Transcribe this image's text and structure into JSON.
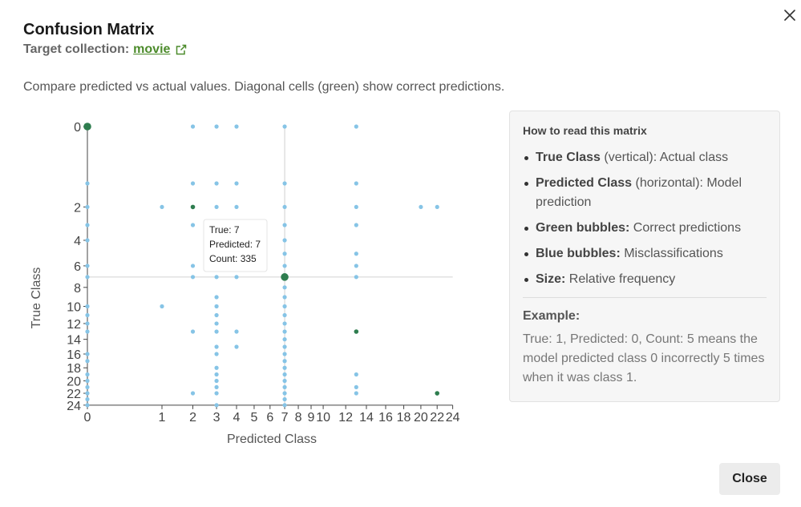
{
  "modal": {
    "title": "Confusion Matrix",
    "target_label": "Target collection:",
    "target_link": "movie",
    "description": "Compare predicted vs actual values. Diagonal cells (green) show correct predictions.",
    "close_label": "Close"
  },
  "legend_panel": {
    "heading": "How to read this matrix",
    "items": [
      {
        "term": "True Class",
        "text": " (vertical): Actual class"
      },
      {
        "term": "Predicted Class",
        "text": " (horizontal): Model prediction"
      },
      {
        "term": "Green bubbles:",
        "text": " Correct predictions"
      },
      {
        "term": "Blue bubbles:",
        "text": " Misclassifications"
      },
      {
        "term": "Size:",
        "text": " Relative frequency"
      }
    ],
    "example_title": "Example:",
    "example_text": "True: 1, Predicted: 0, Count: 5 means the model predicted class 0 incorrectly 5 times when it was class 1."
  },
  "tooltip": {
    "true_line": "True: 7",
    "pred_line": "Predicted: 7",
    "count_line": "Count: 335"
  },
  "colors": {
    "correct": "#2e7d4f",
    "misclassified": "#86c4e6",
    "link": "#4c8b2b"
  },
  "chart_data": {
    "type": "scatter",
    "xlabel": "Predicted Class",
    "ylabel": "True Class",
    "x_ticks": [
      0,
      1,
      2,
      3,
      4,
      5,
      6,
      7,
      8,
      9,
      10,
      12,
      14,
      16,
      18,
      20,
      22,
      24
    ],
    "y_ticks": [
      0,
      2,
      4,
      6,
      8,
      10,
      12,
      14,
      16,
      18,
      20,
      22,
      24
    ],
    "xlim": [
      0,
      24
    ],
    "ylim": [
      0,
      24
    ],
    "scale": "sqrt",
    "hover_crosshair": {
      "x": 7,
      "y": 7
    },
    "correct": [
      {
        "x": 0,
        "y": 0,
        "size": "medium"
      },
      {
        "x": 2,
        "y": 2,
        "size": "small"
      },
      {
        "x": 3,
        "y": 3,
        "size": "large"
      },
      {
        "x": 4,
        "y": 4,
        "size": "small"
      },
      {
        "x": 7,
        "y": 7,
        "size": "medium",
        "count": 335
      },
      {
        "x": 13,
        "y": 13,
        "size": "small"
      },
      {
        "x": 22,
        "y": 22,
        "size": "small"
      }
    ],
    "misclassified": [
      [
        2,
        0
      ],
      [
        3,
        0
      ],
      [
        4,
        0
      ],
      [
        7,
        0
      ],
      [
        13,
        0
      ],
      [
        0,
        1
      ],
      [
        2,
        1
      ],
      [
        3,
        1
      ],
      [
        4,
        1
      ],
      [
        7,
        1
      ],
      [
        13,
        1
      ],
      [
        0,
        2
      ],
      [
        1,
        2
      ],
      [
        3,
        2
      ],
      [
        4,
        2
      ],
      [
        7,
        2
      ],
      [
        13,
        2
      ],
      [
        20,
        2
      ],
      [
        22,
        2
      ],
      [
        0,
        3
      ],
      [
        2,
        3
      ],
      [
        4,
        3
      ],
      [
        7,
        3
      ],
      [
        13,
        3
      ],
      [
        0,
        4
      ],
      [
        3,
        4
      ],
      [
        7,
        4
      ],
      [
        3,
        5
      ],
      [
        7,
        5
      ],
      [
        13,
        5
      ],
      [
        0,
        6
      ],
      [
        2,
        6
      ],
      [
        3,
        6
      ],
      [
        4,
        6
      ],
      [
        7,
        6
      ],
      [
        13,
        6
      ],
      [
        0,
        7
      ],
      [
        2,
        7
      ],
      [
        3,
        7
      ],
      [
        4,
        7
      ],
      [
        13,
        7
      ],
      [
        7,
        8
      ],
      [
        3,
        9
      ],
      [
        7,
        9
      ],
      [
        0,
        10
      ],
      [
        1,
        10
      ],
      [
        3,
        10
      ],
      [
        7,
        10
      ],
      [
        0,
        11
      ],
      [
        3,
        11
      ],
      [
        7,
        11
      ],
      [
        0,
        12
      ],
      [
        3,
        12
      ],
      [
        7,
        12
      ],
      [
        0,
        13
      ],
      [
        2,
        13
      ],
      [
        3,
        13
      ],
      [
        4,
        13
      ],
      [
        7,
        13
      ],
      [
        7,
        14
      ],
      [
        3,
        15
      ],
      [
        4,
        15
      ],
      [
        7,
        15
      ],
      [
        0,
        16
      ],
      [
        3,
        16
      ],
      [
        7,
        16
      ],
      [
        0,
        17
      ],
      [
        7,
        17
      ],
      [
        3,
        18
      ],
      [
        7,
        18
      ],
      [
        0,
        19
      ],
      [
        7,
        19
      ],
      [
        0,
        20
      ],
      [
        3,
        20
      ],
      [
        7,
        20
      ],
      [
        3,
        21
      ],
      [
        7,
        21
      ],
      [
        0,
        22
      ],
      [
        2,
        22
      ],
      [
        3,
        22
      ],
      [
        7,
        22
      ],
      [
        13,
        22
      ],
      [
        0,
        23
      ],
      [
        7,
        23
      ],
      [
        0,
        24
      ],
      [
        3,
        24
      ],
      [
        7,
        24
      ],
      [
        3,
        19
      ],
      [
        13,
        19
      ],
      [
        13,
        21
      ],
      [
        0,
        21
      ]
    ]
  }
}
